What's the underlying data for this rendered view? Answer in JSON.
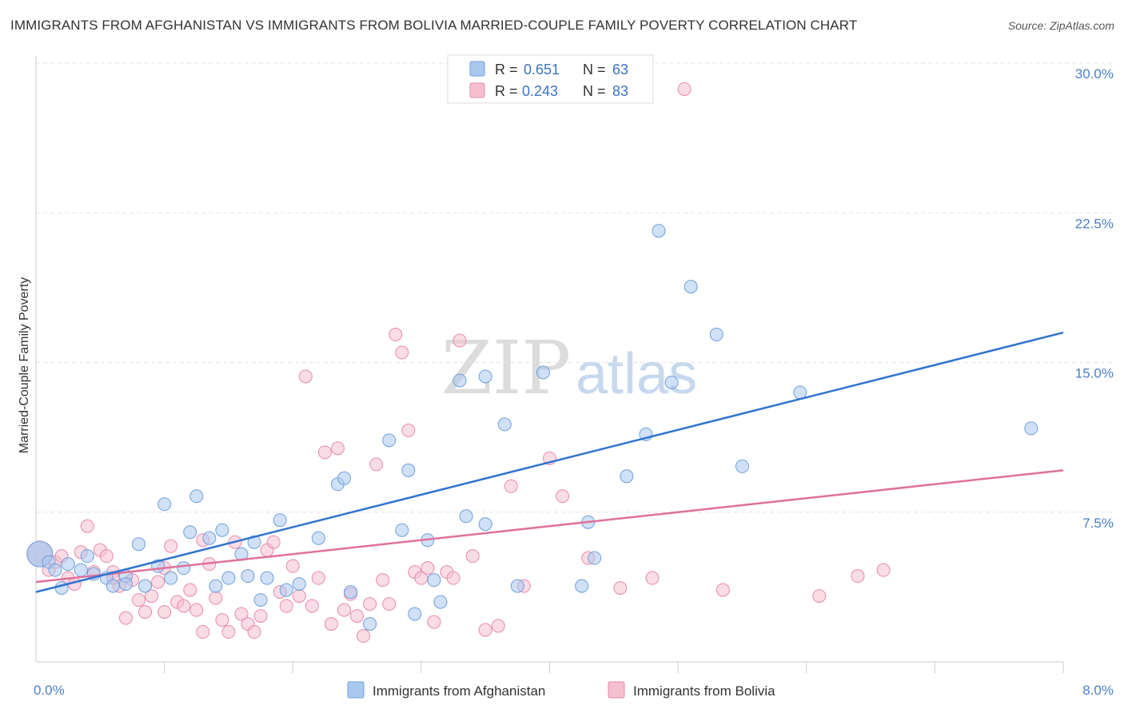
{
  "title": "IMMIGRANTS FROM AFGHANISTAN VS IMMIGRANTS FROM BOLIVIA MARRIED-COUPLE FAMILY POVERTY CORRELATION CHART",
  "source": "Source: ZipAtlas.com",
  "watermark": {
    "zip": "ZIP",
    "atlas": "atlas"
  },
  "legend": {
    "r_label": "R =",
    "n_label": "N =",
    "afghanistan": {
      "r": "0.651",
      "n": "63"
    },
    "bolivia": {
      "r": "0.243",
      "n": "83"
    }
  },
  "colors": {
    "afghanistan_fill": "#a9c8f0",
    "afghanistan_stroke": "#6f9fdc",
    "afghanistan_line": "#2f74d0",
    "bolivia_fill": "#f6bfd0",
    "bolivia_stroke": "#e88aaa",
    "bolivia_line": "#e0709a"
  },
  "chart_data": {
    "type": "scatter",
    "title": "IMMIGRANTS FROM AFGHANISTAN VS IMMIGRANTS FROM BOLIVIA MARRIED-COUPLE FAMILY POVERTY CORRELATION CHART",
    "xlabel": "",
    "ylabel": "Married-Couple Family Poverty",
    "xlim": [
      0.0,
      8.0
    ],
    "ylim": [
      0.0,
      30.0
    ],
    "x_tick_labels": [
      "0.0%",
      "8.0%"
    ],
    "y_ticks": [
      7.5,
      15.0,
      22.5,
      30.0
    ],
    "y_tick_labels": [
      "7.5%",
      "15.0%",
      "22.5%",
      "30.0%"
    ],
    "series": [
      {
        "name": "Immigrants from Afghanistan",
        "r": 0.651,
        "n": 63,
        "trend": [
          [
            0.0,
            3.5
          ],
          [
            8.0,
            16.5
          ]
        ],
        "points": [
          [
            0.03,
            5.4
          ],
          [
            0.1,
            5.0
          ],
          [
            0.2,
            3.7
          ],
          [
            0.25,
            4.9
          ],
          [
            0.35,
            4.6
          ],
          [
            0.4,
            5.3
          ],
          [
            0.45,
            4.4
          ],
          [
            0.55,
            4.2
          ],
          [
            0.6,
            3.8
          ],
          [
            0.7,
            4.3
          ],
          [
            0.8,
            5.9
          ],
          [
            0.85,
            3.8
          ],
          [
            0.95,
            4.8
          ],
          [
            1.0,
            7.9
          ],
          [
            1.05,
            4.2
          ],
          [
            1.15,
            4.7
          ],
          [
            1.2,
            6.5
          ],
          [
            1.25,
            8.3
          ],
          [
            1.35,
            6.2
          ],
          [
            1.4,
            3.8
          ],
          [
            1.45,
            6.6
          ],
          [
            1.5,
            4.2
          ],
          [
            1.6,
            5.4
          ],
          [
            1.65,
            4.3
          ],
          [
            1.7,
            6.0
          ],
          [
            1.75,
            3.1
          ],
          [
            1.8,
            4.2
          ],
          [
            1.9,
            7.1
          ],
          [
            2.05,
            3.9
          ],
          [
            2.2,
            6.2
          ],
          [
            2.35,
            8.9
          ],
          [
            2.4,
            9.2
          ],
          [
            2.45,
            3.5
          ],
          [
            2.6,
            1.9
          ],
          [
            2.75,
            11.1
          ],
          [
            2.85,
            6.6
          ],
          [
            2.9,
            9.6
          ],
          [
            2.95,
            2.4
          ],
          [
            3.05,
            6.1
          ],
          [
            3.15,
            3.0
          ],
          [
            3.3,
            14.1
          ],
          [
            3.35,
            7.3
          ],
          [
            3.5,
            14.3
          ],
          [
            3.5,
            6.9
          ],
          [
            3.65,
            11.9
          ],
          [
            3.75,
            3.8
          ],
          [
            3.95,
            14.5
          ],
          [
            4.25,
            3.8
          ],
          [
            4.3,
            7.0
          ],
          [
            4.35,
            5.2
          ],
          [
            4.6,
            9.3
          ],
          [
            4.75,
            11.4
          ],
          [
            4.85,
            21.6
          ],
          [
            4.95,
            14.0
          ],
          [
            5.1,
            18.8
          ],
          [
            5.3,
            16.4
          ],
          [
            5.5,
            9.8
          ],
          [
            5.95,
            13.5
          ],
          [
            7.75,
            11.7
          ],
          [
            3.1,
            4.1
          ],
          [
            1.95,
            3.6
          ],
          [
            0.7,
            3.9
          ],
          [
            0.15,
            4.6
          ]
        ]
      },
      {
        "name": "Immigrants from Bolivia",
        "r": 0.243,
        "n": 83,
        "trend": [
          [
            0.0,
            4.0
          ],
          [
            8.0,
            9.6
          ]
        ],
        "points": [
          [
            0.03,
            5.4
          ],
          [
            0.1,
            4.6
          ],
          [
            0.15,
            5.0
          ],
          [
            0.2,
            5.3
          ],
          [
            0.25,
            4.2
          ],
          [
            0.3,
            3.9
          ],
          [
            0.35,
            5.5
          ],
          [
            0.4,
            6.8
          ],
          [
            0.45,
            4.5
          ],
          [
            0.5,
            5.6
          ],
          [
            0.55,
            5.3
          ],
          [
            0.6,
            4.5
          ],
          [
            0.65,
            3.8
          ],
          [
            0.7,
            2.2
          ],
          [
            0.75,
            4.1
          ],
          [
            0.8,
            3.1
          ],
          [
            0.85,
            2.5
          ],
          [
            0.9,
            3.3
          ],
          [
            0.95,
            4.0
          ],
          [
            1.0,
            2.5
          ],
          [
            1.05,
            5.8
          ],
          [
            1.1,
            3.0
          ],
          [
            1.15,
            2.8
          ],
          [
            1.2,
            3.6
          ],
          [
            1.25,
            2.6
          ],
          [
            1.3,
            1.5
          ],
          [
            1.35,
            4.9
          ],
          [
            1.4,
            3.2
          ],
          [
            1.45,
            2.1
          ],
          [
            1.5,
            1.5
          ],
          [
            1.55,
            6.0
          ],
          [
            1.6,
            2.4
          ],
          [
            1.65,
            1.9
          ],
          [
            1.7,
            1.5
          ],
          [
            1.75,
            2.3
          ],
          [
            1.8,
            5.6
          ],
          [
            1.85,
            6.0
          ],
          [
            1.9,
            3.5
          ],
          [
            1.95,
            2.8
          ],
          [
            2.0,
            4.8
          ],
          [
            2.05,
            3.3
          ],
          [
            2.1,
            14.3
          ],
          [
            2.15,
            2.8
          ],
          [
            2.2,
            4.2
          ],
          [
            2.25,
            10.5
          ],
          [
            2.3,
            1.9
          ],
          [
            2.35,
            10.7
          ],
          [
            2.4,
            2.6
          ],
          [
            2.45,
            3.4
          ],
          [
            2.5,
            2.3
          ],
          [
            2.55,
            1.3
          ],
          [
            2.6,
            2.9
          ],
          [
            2.65,
            9.9
          ],
          [
            2.7,
            4.1
          ],
          [
            2.75,
            2.9
          ],
          [
            2.8,
            16.4
          ],
          [
            2.85,
            15.5
          ],
          [
            2.9,
            11.6
          ],
          [
            2.95,
            4.5
          ],
          [
            3.0,
            4.2
          ],
          [
            3.05,
            4.7
          ],
          [
            3.1,
            2.0
          ],
          [
            3.2,
            4.5
          ],
          [
            3.25,
            4.2
          ],
          [
            3.3,
            16.1
          ],
          [
            3.4,
            5.3
          ],
          [
            3.5,
            1.6
          ],
          [
            3.6,
            1.8
          ],
          [
            3.7,
            8.8
          ],
          [
            3.8,
            3.8
          ],
          [
            4.0,
            10.2
          ],
          [
            4.1,
            8.3
          ],
          [
            4.3,
            5.2
          ],
          [
            4.55,
            3.7
          ],
          [
            4.8,
            4.2
          ],
          [
            5.05,
            28.7
          ],
          [
            5.35,
            3.6
          ],
          [
            6.1,
            3.3
          ],
          [
            6.4,
            4.3
          ],
          [
            6.6,
            4.6
          ],
          [
            1.0,
            4.7
          ],
          [
            0.6,
            4.2
          ],
          [
            1.3,
            6.1
          ]
        ]
      }
    ]
  }
}
